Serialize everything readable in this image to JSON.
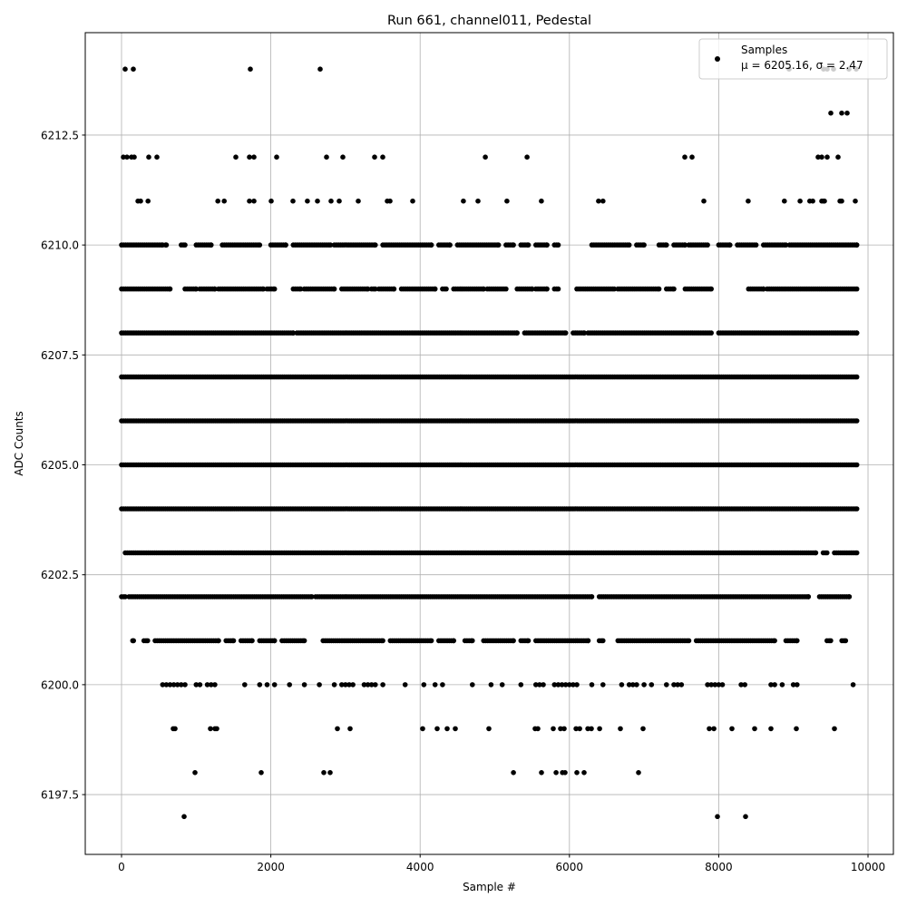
{
  "chart_data": {
    "type": "scatter",
    "title": "Run 661, channel011, Pedestal",
    "xlabel": "Sample #",
    "ylabel": "ADC Counts",
    "xlim": [
      -486,
      10340
    ],
    "ylim": [
      6196.14,
      6214.83
    ],
    "xticks": [
      "0",
      "2000",
      "4000",
      "6000",
      "8000",
      "10000"
    ],
    "xtick_values": [
      0,
      2000,
      4000,
      6000,
      8000,
      10000
    ],
    "yticks": [
      "6197.5",
      "6200.0",
      "6202.5",
      "6205.0",
      "6207.5",
      "6210.0",
      "6212.5"
    ],
    "ytick_values": [
      6197.5,
      6200.0,
      6202.5,
      6205.0,
      6207.5,
      6210.0,
      6212.5
    ],
    "grid": true,
    "legend": {
      "placement": "top-right",
      "entries": [
        "Samples",
        "μ = 6205.16, σ = 2.47"
      ]
    },
    "marker_color": "#000000",
    "grid_color": "#b0b0b0",
    "series": [
      {
        "name": "Samples",
        "sparse_points": {
          "6214": [
            49,
            158,
            1725,
            2661,
            8943,
            9405,
            9453,
            9538,
            9745,
            9842
          ],
          "6213": [
            9502,
            9648,
            9720
          ],
          "6212": [
            24,
            73,
            134,
            170,
            365,
            474,
            1531,
            1713,
            1774,
            2078,
            2746,
            2965,
            3390,
            3499,
            4873,
            5432,
            7546,
            7643,
            9332,
            9380,
            9453,
            9599
          ],
          "6211": [
            220,
            255,
            355,
            1290,
            1375,
            1713,
            1774,
            2005,
            2297,
            2490,
            2624,
            2807,
            2916,
            3171,
            3560,
            3596,
            3900,
            4580,
            4775,
            5163,
            5625,
            6390,
            6450,
            7800,
            8395,
            8880,
            9090,
            9220,
            9260,
            9380,
            9405,
            9417,
            9624,
            9648,
            9830
          ],
          "6200": [
            550,
            600,
            650,
            700,
            750,
            800,
            850,
            1000,
            1050,
            1150,
            1200,
            1250,
            1650,
            1850,
            1950,
            2050,
            2250,
            2450,
            2650,
            2850,
            2950,
            3000,
            3050,
            3100,
            3250,
            3300,
            3350,
            3400,
            3500,
            3800,
            4050,
            4200,
            4300,
            4700,
            4950,
            5100,
            5350,
            5550,
            5600,
            5650,
            5800,
            5850,
            5900,
            5950,
            6000,
            6050,
            6100,
            6300,
            6450,
            6700,
            6800,
            6850,
            6900,
            7000,
            7100,
            7300,
            7400,
            7450,
            7500,
            7850,
            7900,
            7950,
            8000,
            8050,
            8300,
            8350,
            8700,
            8750,
            8850,
            9000,
            9050,
            9800
          ],
          "6199": [
            693,
            717,
            1191,
            1252,
            1276,
            2892,
            3062,
            4034,
            4228,
            4362,
            4471,
            4921,
            5541,
            5577,
            5784,
            5881,
            5930,
            6088,
            6137,
            6246,
            6294,
            6404,
            6683,
            6987,
            7874,
            7935,
            8177,
            8481,
            8700,
            9040,
            9550
          ],
          "6198": [
            984,
            1871,
            2710,
            2795,
            5250,
            5626,
            5821,
            5906,
            5942,
            6100,
            6197,
            6926
          ],
          "6197": [
            838,
            7983,
            8360
          ]
        },
        "dense_runs": {
          "6210": [
            [
              0,
              550
            ],
            [
              590,
              600
            ],
            [
              800,
              850
            ],
            [
              1000,
              1200
            ],
            [
              1350,
              1850
            ],
            [
              2000,
              2200
            ],
            [
              2300,
              2800
            ],
            [
              2850,
              3400
            ],
            [
              3500,
              4150
            ],
            [
              4250,
              4400
            ],
            [
              4500,
              5050
            ],
            [
              5150,
              5250
            ],
            [
              5350,
              5450
            ],
            [
              5550,
              5700
            ],
            [
              5800,
              5850
            ],
            [
              6300,
              6800
            ],
            [
              6900,
              7000
            ],
            [
              7200,
              7300
            ],
            [
              7400,
              7550
            ],
            [
              7600,
              7850
            ],
            [
              8000,
              8150
            ],
            [
              8250,
              8500
            ],
            [
              8600,
              8900
            ],
            [
              8950,
              9850
            ]
          ],
          "6209": [
            [
              0,
              650
            ],
            [
              850,
              1000
            ],
            [
              1050,
              1250
            ],
            [
              1300,
              1900
            ],
            [
              1950,
              2050
            ],
            [
              2300,
              2400
            ],
            [
              2450,
              2850
            ],
            [
              2950,
              3300
            ],
            [
              3350,
              3400
            ],
            [
              3450,
              3650
            ],
            [
              3750,
              4200
            ],
            [
              4300,
              4350
            ],
            [
              4450,
              4850
            ],
            [
              4900,
              5150
            ],
            [
              5300,
              5500
            ],
            [
              5550,
              5700
            ],
            [
              5800,
              5850
            ],
            [
              6100,
              6600
            ],
            [
              6650,
              7200
            ],
            [
              7300,
              7400
            ],
            [
              7550,
              7900
            ],
            [
              8400,
              8600
            ],
            [
              8650,
              9850
            ]
          ],
          "6208": [
            [
              0,
              2300
            ],
            [
              2350,
              5300
            ],
            [
              5400,
              5950
            ],
            [
              6050,
              6200
            ],
            [
              6250,
              7900
            ],
            [
              8000,
              9850
            ]
          ],
          "6207": [
            [
              0,
              9850
            ]
          ],
          "6206": [
            [
              0,
              9850
            ]
          ],
          "6205": [
            [
              0,
              9850
            ]
          ],
          "6204": [
            [
              0,
              9850
            ]
          ],
          "6203": [
            [
              50,
              9300
            ],
            [
              9400,
              9450
            ],
            [
              9550,
              9850
            ]
          ],
          "6202": [
            [
              0,
              50
            ],
            [
              100,
              2550
            ],
            [
              2600,
              6300
            ],
            [
              6400,
              9200
            ],
            [
              9350,
              9750
            ]
          ],
          "6201": [
            [
              150,
              160
            ],
            [
              300,
              350
            ],
            [
              450,
              1300
            ],
            [
              1400,
              1500
            ],
            [
              1600,
              1750
            ],
            [
              1850,
              2050
            ],
            [
              2150,
              2450
            ],
            [
              2700,
              3500
            ],
            [
              3600,
              4150
            ],
            [
              4250,
              4450
            ],
            [
              4600,
              4700
            ],
            [
              4850,
              5250
            ],
            [
              5350,
              5450
            ],
            [
              5550,
              6250
            ],
            [
              6400,
              6450
            ],
            [
              6650,
              7600
            ],
            [
              7700,
              8750
            ],
            [
              8900,
              9050
            ],
            [
              9450,
              9500
            ],
            [
              9650,
              9700
            ]
          ]
        }
      }
    ]
  }
}
